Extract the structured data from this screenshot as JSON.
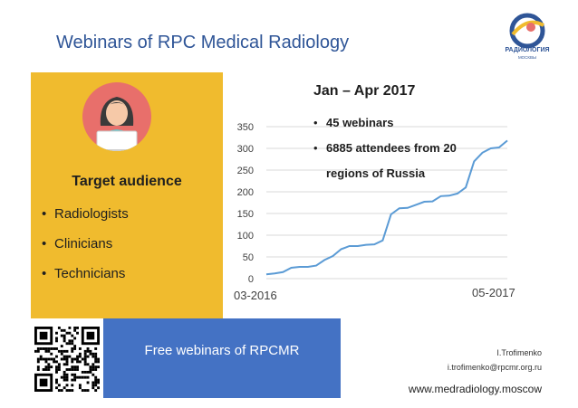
{
  "header": {
    "title": "Webinars of RPC Medical Radiology"
  },
  "logo": {
    "line1": "РАДИОЛОГИЯ",
    "line2": "МОСКВЫ"
  },
  "audience": {
    "title": "Target audience",
    "items": [
      "Radiologists",
      "Clinicians",
      "Technicians"
    ]
  },
  "chart_info": {
    "title": "Jan – Apr 2017",
    "notes": [
      "45 webinars",
      "6885 attendees from 20",
      "regions of Russia"
    ]
  },
  "chart_data": {
    "type": "line",
    "x_start_label": "03-2016",
    "x_end_label": "05-2017",
    "ylim": [
      0,
      350
    ],
    "yticks": [
      0,
      50,
      100,
      150,
      200,
      250,
      300,
      350
    ],
    "grid": true,
    "series": [
      {
        "color": "#5b9bd5",
        "values": [
          10,
          12,
          15,
          25,
          27,
          27,
          30,
          43,
          52,
          68,
          75,
          75,
          78,
          79,
          88,
          148,
          162,
          163,
          170,
          177,
          178,
          190,
          191,
          196,
          210,
          270,
          290,
          300,
          302,
          318
        ]
      }
    ]
  },
  "banner": {
    "text": "Free webinars of RPCMR"
  },
  "footer": {
    "author": "I.Trofimenko",
    "email": "i.trofimenko@rpcmr.org.ru",
    "website": "www.medradiology.moscow"
  },
  "colors": {
    "accent_yellow": "#f0bb2e",
    "banner_blue": "#4472c4",
    "title_blue": "#2f5597",
    "line": "#5b9bd5"
  }
}
